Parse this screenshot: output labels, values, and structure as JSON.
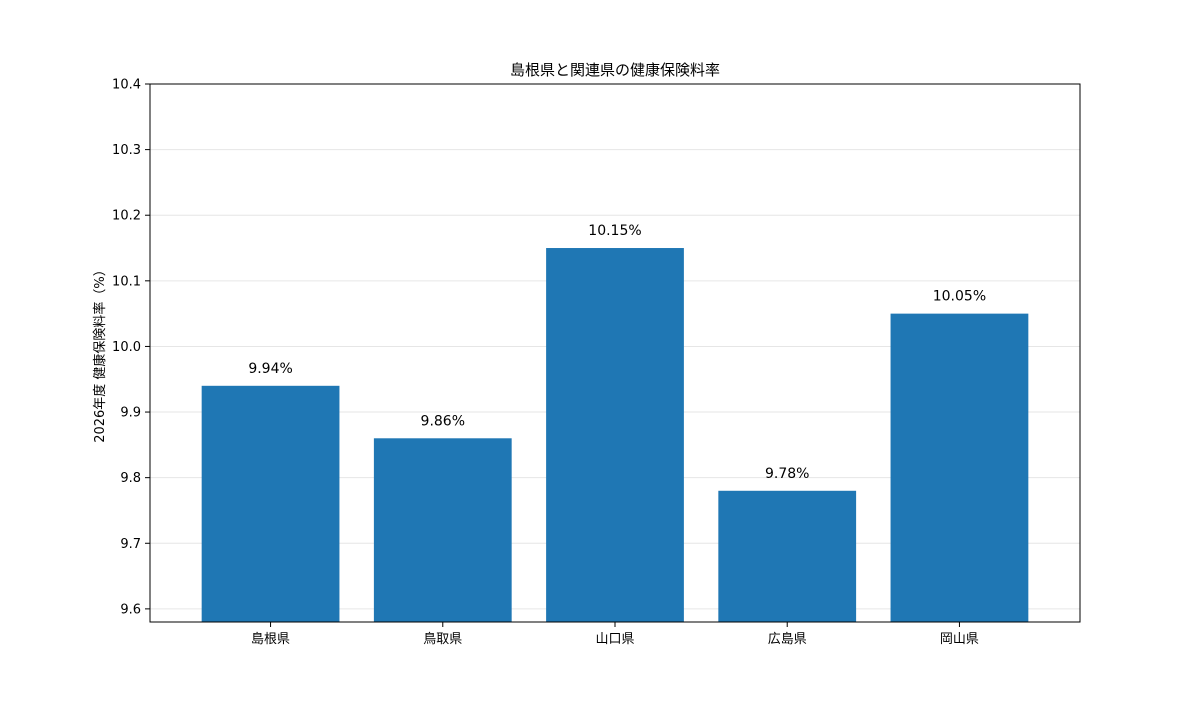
{
  "chart_data": {
    "type": "bar",
    "title": "島根県と関連県の健康保険料率",
    "xlabel": "",
    "ylabel": "2026年度 健康保険料率（%）",
    "categories": [
      "島根県",
      "鳥取県",
      "山口県",
      "広島県",
      "岡山県"
    ],
    "values": [
      9.94,
      9.86,
      10.15,
      9.78,
      10.05
    ],
    "data_labels": [
      "9.94%",
      "9.86%",
      "10.15%",
      "9.78%",
      "10.05%"
    ],
    "ylim": [
      9.58,
      10.4
    ],
    "yticks": [
      9.6,
      9.7,
      9.8,
      9.9,
      10.0,
      10.1,
      10.2,
      10.3,
      10.4
    ],
    "ytick_labels": [
      "9.6",
      "9.7",
      "9.8",
      "9.9",
      "10.0",
      "10.1",
      "10.2",
      "10.3",
      "10.4"
    ],
    "grid": true,
    "bar_color": "#1f77b4",
    "grid_color": "#e6e6e6"
  }
}
